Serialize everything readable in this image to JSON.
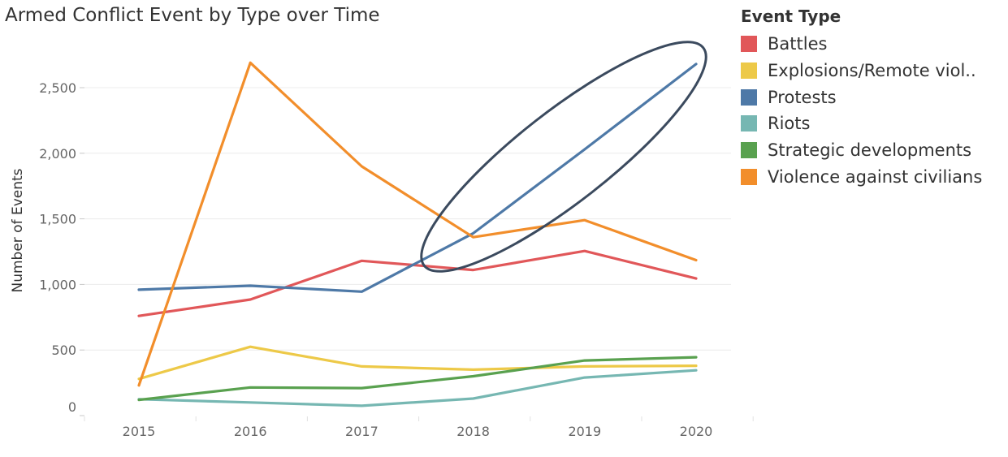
{
  "chart_data": {
    "type": "line",
    "title": "Armed Conflict Event by Type over Time",
    "xlabel": "",
    "ylabel": "Number of Events",
    "x": [
      "2015",
      "2016",
      "2017",
      "2018",
      "2019",
      "2020"
    ],
    "ylim": [
      0,
      2850
    ],
    "yticks": [
      0,
      500,
      1000,
      1500,
      2000,
      2500
    ],
    "ytick_labels": [
      "0",
      "500",
      "1,000",
      "1,500",
      "2,000",
      "2,500"
    ],
    "grid": "horizontal",
    "legend_title": "Event Type",
    "legend_position": "right",
    "series": [
      {
        "name": "Battles",
        "color": "#e15759",
        "values": [
          760,
          885,
          1180,
          1110,
          1255,
          1045
        ]
      },
      {
        "name": "Explosions/Remote viol..",
        "color": "#edc948",
        "values": [
          280,
          525,
          375,
          350,
          375,
          380
        ]
      },
      {
        "name": "Protests",
        "color": "#4e79a7",
        "values": [
          960,
          990,
          945,
          1390,
          2030,
          2680
        ]
      },
      {
        "name": "Riots",
        "color": "#76b7b2",
        "values": [
          125,
          100,
          75,
          130,
          290,
          345
        ]
      },
      {
        "name": "Strategic developments",
        "color": "#59a14f",
        "values": [
          120,
          215,
          210,
          300,
          420,
          445
        ]
      },
      {
        "name": "Violence against civilians",
        "color": "#f28e2b",
        "values": [
          230,
          2690,
          1900,
          1360,
          1490,
          1185
        ]
      }
    ],
    "annotation": {
      "shape": "ellipse",
      "color": "#3b4a5e",
      "highlights": "Protests",
      "x_range": [
        "2018",
        "2020"
      ]
    }
  }
}
